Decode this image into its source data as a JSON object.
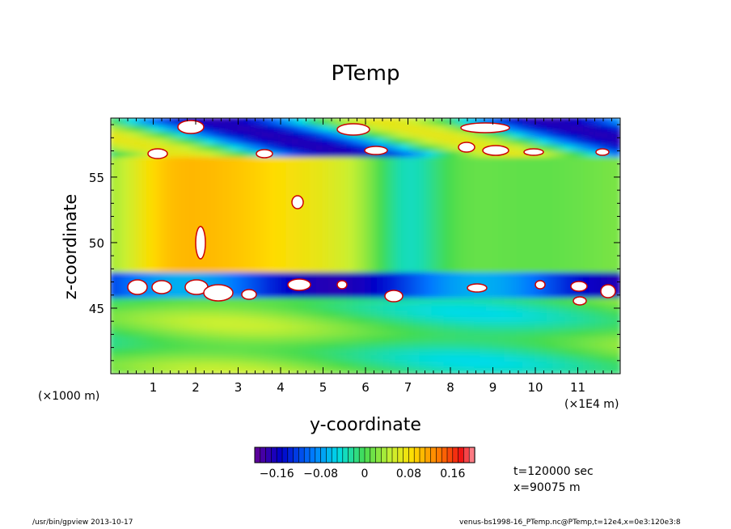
{
  "chart_data": {
    "type": "heatmap",
    "title": "PTemp",
    "xlabel": "y-coordinate",
    "ylabel": "z-coordinate",
    "x_unit_left": "(×1000 m)",
    "x_unit_right": "(×1E4 m)",
    "x_ticks": [
      "1",
      "2",
      "3",
      "4",
      "5",
      "6",
      "7",
      "8",
      "9",
      "10",
      "11"
    ],
    "y_ticks": [
      "45",
      "50",
      "55"
    ],
    "xlim": [
      0,
      120000
    ],
    "ylim": [
      40,
      59.5
    ],
    "colorbar": {
      "range": [
        -0.2,
        0.2
      ],
      "tick_values": [
        -0.16,
        -0.08,
        0,
        0.08,
        0.16
      ],
      "tick_labels": [
        "−0.16",
        "−0.08",
        "0",
        "0.08",
        "0.16"
      ]
    },
    "annotations": [
      "t=120000 sec",
      "x=90075 m"
    ]
  },
  "footer": {
    "left": "/usr/bin/gpview   2013-10-17",
    "right": "venus-bs1998-16_PTemp.nc@PTemp,t=12e4,x=0e3:120e3:8"
  }
}
